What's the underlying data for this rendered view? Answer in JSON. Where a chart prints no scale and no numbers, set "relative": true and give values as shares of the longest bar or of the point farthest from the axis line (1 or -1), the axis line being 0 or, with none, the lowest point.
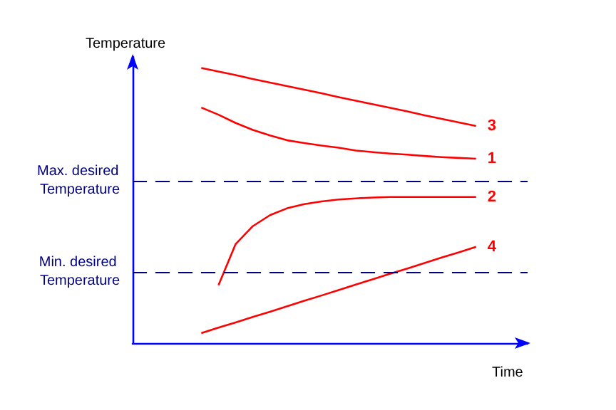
{
  "chart_data": {
    "type": "line",
    "relative": true,
    "xlabel": "Time",
    "ylabel": "Temperature",
    "legend": false,
    "grid": false,
    "marker": "none",
    "line_style": "solid",
    "categories": [
      null,
      null,
      null,
      null,
      null,
      null,
      null,
      null,
      null,
      null,
      null,
      null,
      null,
      null,
      null,
      null,
      null,
      null,
      null,
      null,
      null,
      null,
      null,
      null
    ],
    "series": [
      {
        "name": "3",
        "color": "#ff0000",
        "values": [
          null,
          null,
          null,
          null,
          1,
          0.987,
          0.974,
          0.96,
          0.947,
          0.934,
          0.921,
          0.908,
          0.894,
          0.881,
          0.868,
          0.855,
          0.842,
          0.828,
          0.815,
          0.802,
          0.789,
          null,
          null,
          null
        ]
      },
      {
        "name": "1",
        "color": "#ff0000",
        "values": [
          null,
          null,
          null,
          null,
          0.856,
          0.83,
          0.8,
          0.775,
          0.755,
          0.737,
          0.727,
          0.718,
          0.71,
          0.7,
          0.694,
          0.689,
          0.685,
          0.68,
          0.676,
          0.673,
          0.67,
          null,
          null,
          null
        ]
      },
      {
        "name": "2",
        "color": "#ff0000",
        "values": [
          null,
          null,
          null,
          null,
          null,
          0.21,
          0.36,
          0.425,
          0.465,
          0.49,
          0.505,
          0.515,
          0.522,
          0.526,
          0.529,
          0.531,
          0.531,
          0.531,
          0.531,
          0.531,
          0.531,
          null,
          null,
          null
        ]
      },
      {
        "name": "4",
        "color": "#ff0000",
        "values": [
          null,
          null,
          null,
          null,
          0.036,
          0.056,
          0.075,
          0.095,
          0.114,
          0.134,
          0.154,
          0.173,
          0.193,
          0.213,
          0.232,
          0.252,
          0.271,
          0.291,
          0.311,
          0.33,
          0.35,
          null,
          null,
          null
        ]
      }
    ],
    "ref_lines": [
      {
        "axis": "y",
        "value": 0.588,
        "label": "Max. desired Temperature",
        "color": "#000080",
        "line_style": "dashed"
      },
      {
        "axis": "y",
        "value": 0.263,
        "label": "Min. desired Temperature",
        "color": "#000080",
        "line_style": "dashed"
      }
    ]
  }
}
